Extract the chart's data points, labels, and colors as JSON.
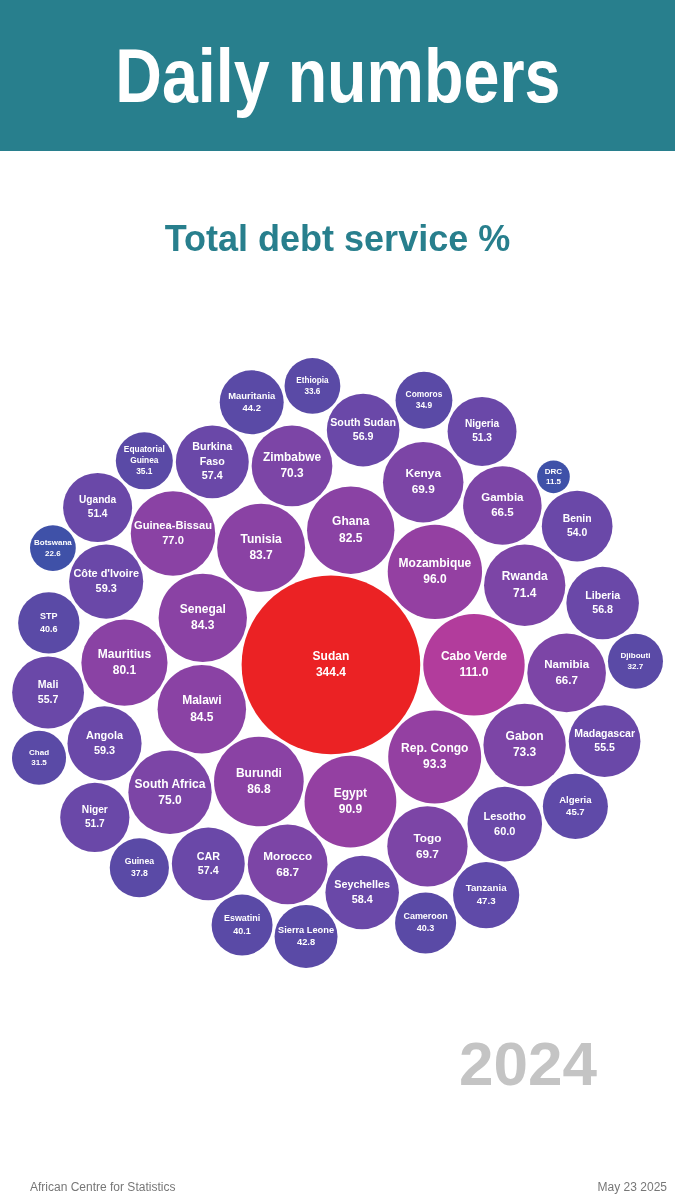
{
  "chart_data": {
    "type": "other",
    "title": "Daily numbers",
    "subtitle": "Total debt service %",
    "categories": [
      "Sudan",
      "Cabo Verde",
      "Mozambique",
      "Rep. Congo",
      "Egypt",
      "Burundi",
      "Malawi",
      "Senegal",
      "Tunisia",
      "Ghana",
      "Mauritius",
      "Guinea-Bissau",
      "South Africa",
      "Gabon",
      "Rwanda",
      "Zimbabwe",
      "Kenya",
      "Togo",
      "Morocco",
      "Namibia",
      "Gambia",
      "Lesotho",
      "Angola",
      "Côte d'Ivoire",
      "Seychelles",
      "CAR",
      "Burkina Faso",
      "South Sudan",
      "Liberia",
      "Mali",
      "Madagascar",
      "Benin",
      "Niger",
      "Uganda",
      "Nigeria",
      "Tanzania",
      "Algeria",
      "Mauritania",
      "Sierra Leone",
      "STP",
      "Cameroon",
      "Eswatini",
      "Guinea",
      "Equatorial Guinea",
      "Comoros",
      "Ethiopia",
      "Djibouti",
      "Chad",
      "Botswana",
      "DRC"
    ],
    "values": [
      344.4,
      111.0,
      96.0,
      93.3,
      90.9,
      86.8,
      84.5,
      84.3,
      83.7,
      82.5,
      80.1,
      77.0,
      75.0,
      73.3,
      71.4,
      70.3,
      69.9,
      69.7,
      68.7,
      66.7,
      66.5,
      60.0,
      59.3,
      59.3,
      58.4,
      57.4,
      57.4,
      56.9,
      56.8,
      55.7,
      55.5,
      54.0,
      51.7,
      51.4,
      51.3,
      47.3,
      45.7,
      44.2,
      42.8,
      40.6,
      40.3,
      40.1,
      37.8,
      35.1,
      34.9,
      33.6,
      32.7,
      31.5,
      22.6,
      11.5
    ],
    "colors": [
      "#eb2224",
      "#b23c9c",
      "#9440a2",
      "#9440a2",
      "#9440a2",
      "#8a42a4",
      "#8a42a4",
      "#8a42a4",
      "#8a42a4",
      "#8a42a4",
      "#8a42a4",
      "#8a42a4",
      "#7c45a6",
      "#7c45a6",
      "#7c45a6",
      "#7c45a6",
      "#7c45a6",
      "#7c45a6",
      "#7c45a6",
      "#7c45a6",
      "#7c45a6",
      "#6a48a8",
      "#6a48a8",
      "#6a48a8",
      "#6a48a8",
      "#6a48a8",
      "#6a48a8",
      "#6a48a8",
      "#6a48a8",
      "#6a48a8",
      "#6a48a8",
      "#6a48a8",
      "#6a48a8",
      "#6a48a8",
      "#6a48a8",
      "#5f4aa8",
      "#5f4aa8",
      "#5a4aa6",
      "#5a4aa6",
      "#5a4aa6",
      "#5a4aa6",
      "#5a4aa6",
      "#5a4aa6",
      "#5a4aa6",
      "#5a4aa6",
      "#5a4aa6",
      "#5a4aa6",
      "#5a4aa6",
      "#3f51a8",
      "#3f51a8"
    ],
    "value_labels": [
      "344.4",
      "111.0",
      "96.0",
      "93.3",
      "90.9",
      "86.8",
      "84.5",
      "84.3",
      "83.7",
      "82.5",
      "80.1",
      "77.0",
      "75.0",
      "73.3",
      "71.4",
      "70.3",
      "69.9",
      "69.7",
      "68.7",
      "66.7",
      "66.5",
      "60.0",
      "59.3",
      "59.3",
      "58.4",
      "57.4",
      "57.4",
      "56.9",
      "56.8",
      "55.7",
      "55.5",
      "54.0",
      "51.7",
      "51.4",
      "51.3",
      "47.3",
      "45.7",
      "44.2",
      "42.8",
      "40.6",
      "40.3",
      "40.1",
      "37.8",
      "35.1",
      "34.9",
      "33.6",
      "32.7",
      "31.5",
      "22.6",
      "11.5"
    ],
    "legend": false,
    "annotations": [
      "2024",
      "African Centre for Statistics",
      "May 23 2025"
    ]
  }
}
